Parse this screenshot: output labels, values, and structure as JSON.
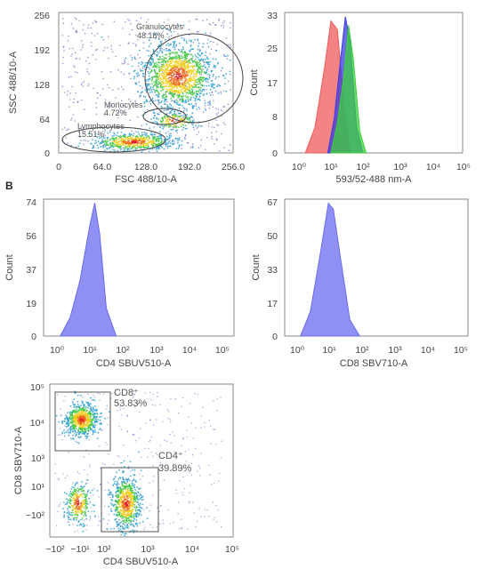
{
  "panel_label_b": "B",
  "chart_data": [
    {
      "type": "scatter",
      "xlabel": "FSC 488/10-A",
      "ylabel": "SSC 488/10-A",
      "xlim": [
        0,
        256
      ],
      "ylim": [
        0,
        256
      ],
      "xticks": [
        "0",
        "64.0",
        "128.0",
        "192.0",
        "256.0"
      ],
      "yticks": [
        "0",
        "64",
        "128",
        "192",
        "256"
      ],
      "populations": [
        {
          "name": "Granulocytes",
          "percent": "48.18%",
          "center": [
            175,
            140
          ]
        },
        {
          "name": "Monocytes",
          "percent": "4.72%",
          "center": [
            170,
            58
          ]
        },
        {
          "name": "Lymphocytes",
          "percent": "15.51%",
          "center": [
            110,
            20
          ]
        }
      ]
    },
    {
      "type": "area",
      "xlabel": "593/52-488 nm-A",
      "ylabel": "Count",
      "ylim": [
        0,
        33
      ],
      "yticks": [
        "0",
        "8",
        "17",
        "25",
        "33"
      ],
      "xticks": [
        "10⁰",
        "10¹",
        "10²",
        "10³",
        "10⁴",
        "10⁵"
      ],
      "xscale": "log",
      "series": [
        {
          "color": "#f05a5a",
          "x": [
            0.2,
            0.5,
            0.8,
            1.0,
            1.2,
            1.4,
            1.6
          ],
          "y": [
            0,
            6,
            20,
            31,
            29,
            12,
            0
          ]
        },
        {
          "color": "#3a3ae0",
          "x": [
            0.9,
            1.1,
            1.3,
            1.45,
            1.6,
            1.8,
            2.0
          ],
          "y": [
            0,
            8,
            22,
            32,
            26,
            6,
            0
          ]
        },
        {
          "color": "#3bd13b",
          "x": [
            1.0,
            1.2,
            1.4,
            1.55,
            1.7,
            1.9,
            2.1
          ],
          "y": [
            0,
            7,
            18,
            30,
            22,
            5,
            0
          ]
        }
      ]
    },
    {
      "type": "area",
      "xlabel": "CD4 SBUV510-A",
      "ylabel": "Count",
      "ylim": [
        0,
        74
      ],
      "yticks": [
        "0",
        "19",
        "37",
        "56",
        "74"
      ],
      "xticks": [
        "10⁰",
        "10¹",
        "10²",
        "10³",
        "10⁴",
        "10⁵"
      ],
      "xscale": "log",
      "series": [
        {
          "color": "#6b6bf0",
          "x": [
            0.1,
            0.4,
            0.7,
            1.0,
            1.15,
            1.3,
            1.5,
            1.8
          ],
          "y": [
            0,
            10,
            30,
            60,
            72,
            55,
            15,
            0
          ]
        }
      ]
    },
    {
      "type": "area",
      "xlabel": "CD8 SBV710-A",
      "ylabel": "Count",
      "ylim": [
        0,
        67
      ],
      "yticks": [
        "0",
        "17",
        "33",
        "50",
        "67"
      ],
      "xticks": [
        "10⁰",
        "10¹",
        "10²",
        "10³",
        "10⁴",
        "10⁵"
      ],
      "xscale": "log",
      "series": [
        {
          "color": "#6b6bf0",
          "x": [
            0.1,
            0.4,
            0.7,
            0.95,
            1.1,
            1.3,
            1.6,
            1.9
          ],
          "y": [
            0,
            12,
            40,
            65,
            62,
            40,
            8,
            0
          ]
        }
      ]
    },
    {
      "type": "scatter",
      "xlabel": "CD4 SBUV510-A",
      "ylabel": "CD8 SBV710-A",
      "xticks": [
        "−10²",
        "−10¹",
        "10²",
        "10³",
        "10⁴",
        "10⁵"
      ],
      "yticks": [
        "10⁵",
        "10⁴",
        "10³",
        "10¹",
        "−10²"
      ],
      "populations": [
        {
          "name": "CD8⁺",
          "percent": "53.83%"
        },
        {
          "name": "CD4⁺",
          "percent": "39.89%"
        }
      ]
    }
  ]
}
